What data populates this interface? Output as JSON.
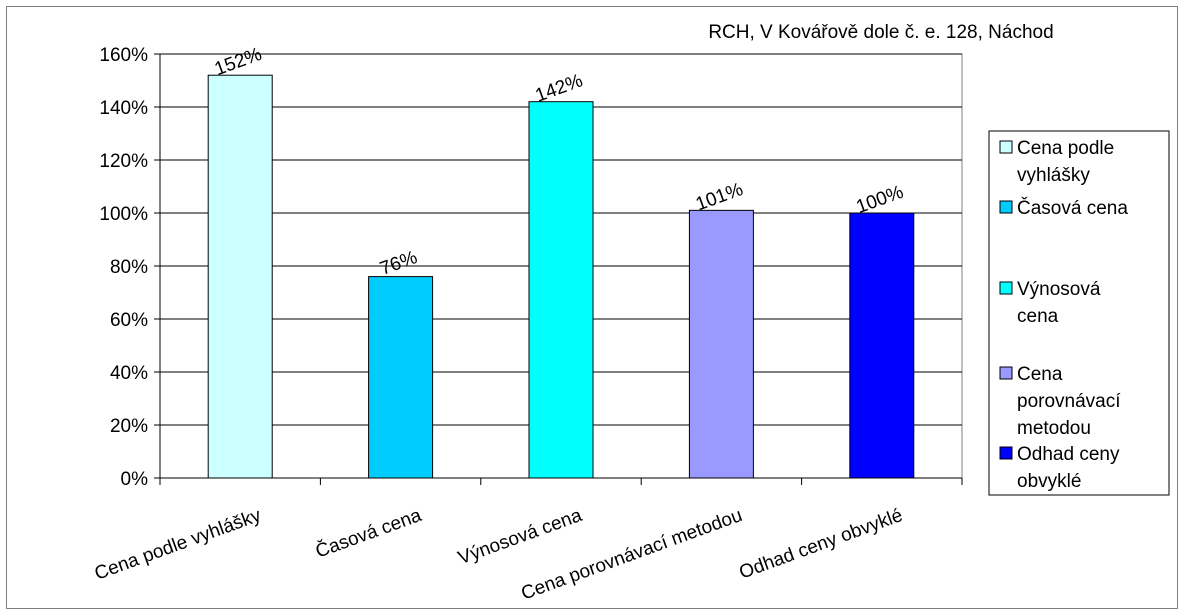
{
  "chart_data": {
    "type": "bar",
    "title": "RCH, V Kovářově dole č. e. 128, Náchod",
    "categories": [
      "Cena podle vyhlášky",
      "Časová cena",
      "Výnosová cena",
      "Cena porovnávací metodou",
      "Odhad ceny obvyklé"
    ],
    "values": [
      152,
      76,
      142,
      101,
      100
    ],
    "data_labels": [
      "152%",
      "76%",
      "142%",
      "101%",
      "100%"
    ],
    "colors": [
      "#ccffff",
      "#00ccff",
      "#00ffff",
      "#9999ff",
      "#0000ff"
    ],
    "ylim": [
      0,
      160
    ],
    "yticks": [
      0,
      20,
      40,
      60,
      80,
      100,
      120,
      140,
      160
    ],
    "ytick_labels": [
      "0%",
      "20%",
      "40%",
      "60%",
      "80%",
      "100%",
      "120%",
      "140%",
      "160%"
    ],
    "grid": true,
    "legend": {
      "position": "right",
      "entries": [
        {
          "lines": [
            "Cena podle",
            "vyhlášky"
          ]
        },
        {
          "lines": [
            "Časová cena"
          ]
        },
        {
          "lines": [
            "Výnosová",
            "cena"
          ]
        },
        {
          "lines": [
            "Cena",
            "porovnávací",
            "metodou"
          ]
        },
        {
          "lines": [
            "Odhad ceny",
            "obvyklé"
          ]
        }
      ]
    }
  }
}
